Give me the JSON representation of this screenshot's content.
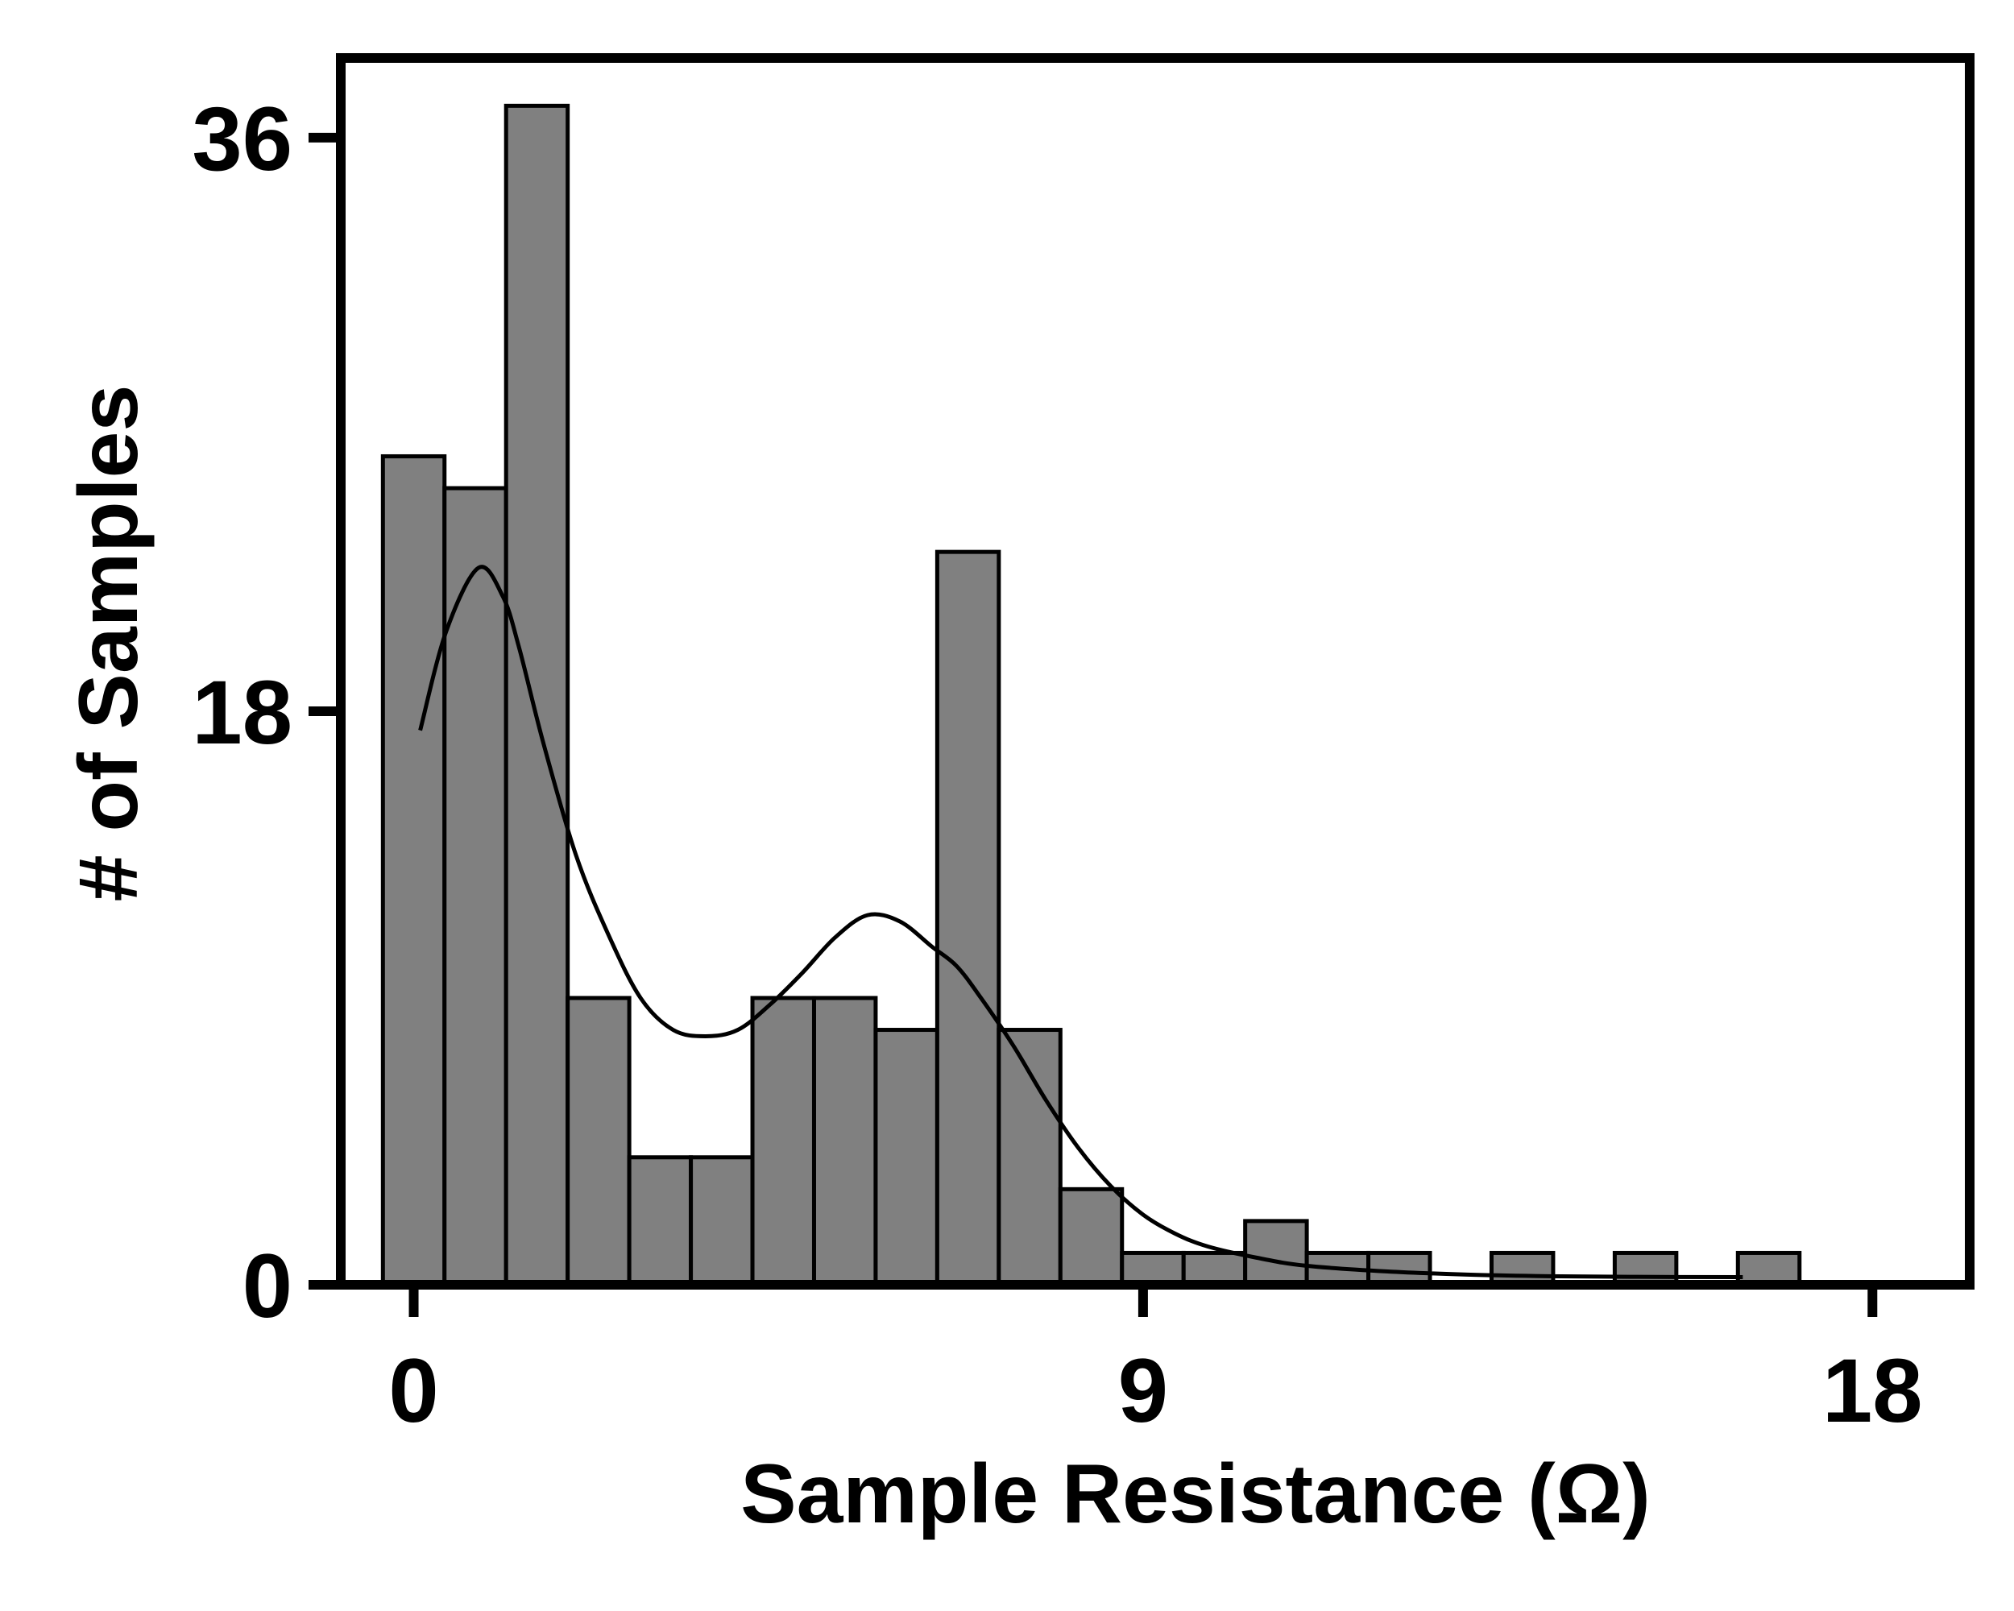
{
  "chart_data": {
    "type": "bar",
    "subtype": "histogram",
    "title": "",
    "xlabel": "Sample Resistance (Ω)",
    "ylabel": "# of Samples",
    "xlim": [
      -0.9,
      19.2
    ],
    "ylim": [
      0,
      38.5
    ],
    "xticks": [
      0,
      9,
      18
    ],
    "yticks": [
      0,
      18,
      36
    ],
    "bin_width": 0.76,
    "bins": [
      {
        "x0": -0.38,
        "x1": 0.38,
        "count": 26
      },
      {
        "x0": 0.38,
        "x1": 1.14,
        "count": 25
      },
      {
        "x0": 1.14,
        "x1": 1.9,
        "count": 37
      },
      {
        "x0": 1.9,
        "x1": 2.66,
        "count": 9
      },
      {
        "x0": 2.66,
        "x1": 3.42,
        "count": 4
      },
      {
        "x0": 3.42,
        "x1": 4.18,
        "count": 4
      },
      {
        "x0": 4.18,
        "x1": 4.94,
        "count": 9
      },
      {
        "x0": 4.94,
        "x1": 5.7,
        "count": 9
      },
      {
        "x0": 5.7,
        "x1": 6.46,
        "count": 8
      },
      {
        "x0": 6.46,
        "x1": 7.22,
        "count": 23
      },
      {
        "x0": 7.22,
        "x1": 7.98,
        "count": 8
      },
      {
        "x0": 7.98,
        "x1": 8.74,
        "count": 3
      },
      {
        "x0": 8.74,
        "x1": 9.5,
        "count": 1
      },
      {
        "x0": 9.5,
        "x1": 10.26,
        "count": 1
      },
      {
        "x0": 10.26,
        "x1": 11.02,
        "count": 2
      },
      {
        "x0": 11.02,
        "x1": 11.78,
        "count": 1
      },
      {
        "x0": 11.78,
        "x1": 12.54,
        "count": 1
      },
      {
        "x0": 12.54,
        "x1": 13.3,
        "count": 0
      },
      {
        "x0": 13.3,
        "x1": 14.06,
        "count": 1
      },
      {
        "x0": 14.06,
        "x1": 14.82,
        "count": 0
      },
      {
        "x0": 14.82,
        "x1": 15.58,
        "count": 1
      },
      {
        "x0": 15.58,
        "x1": 16.34,
        "count": 0
      },
      {
        "x0": 16.34,
        "x1": 17.1,
        "count": 1
      }
    ],
    "kde": {
      "x": [
        0.08,
        0.4,
        0.8,
        1.1,
        1.3,
        1.6,
        2.0,
        2.4,
        2.8,
        3.2,
        3.6,
        4.0,
        4.4,
        4.8,
        5.2,
        5.6,
        6.0,
        6.4,
        6.7,
        7.0,
        7.4,
        7.8,
        8.2,
        8.6,
        9.0,
        9.4,
        9.8,
        10.4,
        11.0,
        12.0,
        13.0,
        14.0,
        15.0,
        16.4
      ],
      "y": [
        17.4,
        20.5,
        22.5,
        21.6,
        20.0,
        17.0,
        13.5,
        11.0,
        9.0,
        8.0,
        7.8,
        8.0,
        8.8,
        9.8,
        10.9,
        11.6,
        11.4,
        10.6,
        10.0,
        9.0,
        7.5,
        5.8,
        4.3,
        3.1,
        2.2,
        1.6,
        1.2,
        0.85,
        0.6,
        0.42,
        0.32,
        0.27,
        0.25,
        0.24
      ]
    },
    "colors": {
      "bar_fill": "#808080",
      "bar_edge": "#000000",
      "kde_line": "#000000",
      "frame": "#000000"
    },
    "grid": false,
    "legend": "none"
  }
}
